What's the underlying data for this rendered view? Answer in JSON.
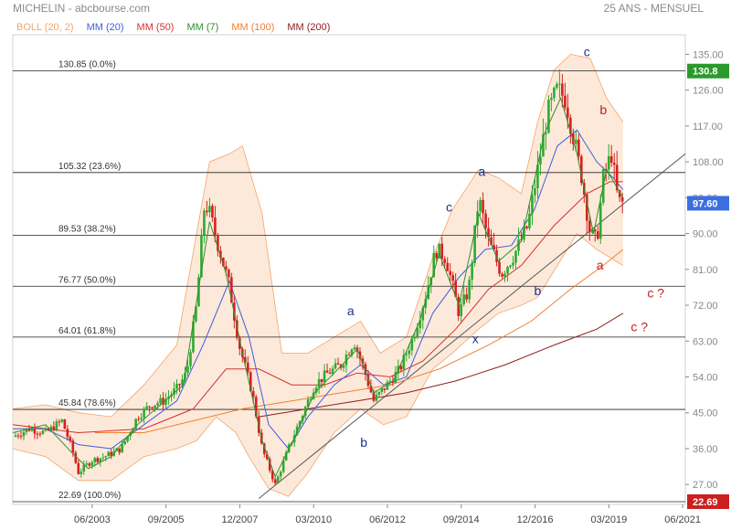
{
  "header": {
    "title": "MICHELIN - abcbourse.com",
    "period": "25 ANS - MENSUEL"
  },
  "legend": [
    {
      "label": "BOLL (20, 2)",
      "color": "#f4a46a"
    },
    {
      "label": "MM (20)",
      "color": "#3b5fe0"
    },
    {
      "label": "MM (50)",
      "color": "#d83030"
    },
    {
      "label": "MM (7)",
      "color": "#2f8f2f"
    },
    {
      "label": "MM (100)",
      "color": "#f08030"
    },
    {
      "label": "MM (200)",
      "color": "#8b2020"
    }
  ],
  "colors": {
    "up_candle": "#2faa2f",
    "down_candle": "#d62020",
    "bollinger_fill": "#fde3cf",
    "bollinger_line": "#f4a46a",
    "trendline": "#555555",
    "last_price_badge": "#2a9a2a",
    "low_badge": "#cc2020",
    "current_badge": "#3b6fe0",
    "wave_blue": "#1f2f8f",
    "wave_red": "#c02020"
  },
  "chart_data": {
    "type": "candlestick",
    "ylim": [
      22,
      139
    ],
    "xlim": [
      2001.0,
      2021.5
    ],
    "x_ticks": [
      {
        "label": "06/2003",
        "x": 2003.42
      },
      {
        "label": "09/2005",
        "x": 2005.67
      },
      {
        "label": "12/2007",
        "x": 2007.92
      },
      {
        "label": "03/2010",
        "x": 2010.17
      },
      {
        "label": "06/2012",
        "x": 2012.42
      },
      {
        "label": "09/2014",
        "x": 2014.67
      },
      {
        "label": "12/2016",
        "x": 2016.92
      },
      {
        "label": "03/2019",
        "x": 2019.17
      },
      {
        "label": "06/2021",
        "x": 2021.42
      }
    ],
    "y_ticks": [
      27.0,
      36.0,
      45.0,
      54.0,
      63.0,
      72.0,
      81.0,
      90.0,
      99.0,
      108.0,
      117.0,
      126.0,
      135.0
    ],
    "y_tick_labels": [
      "27.00",
      "36.00",
      "45.00",
      "54.00",
      "63.00",
      "72.00",
      "81.00",
      "90.00",
      "99.00",
      "108.00",
      "117.00",
      "126.00",
      "135.00"
    ],
    "fib_levels": [
      {
        "value": 130.85,
        "label": "130.85  (0.0%)"
      },
      {
        "value": 105.32,
        "label": "105.32  (23.6%)"
      },
      {
        "value": 89.53,
        "label": "89.53  (38.2%)"
      },
      {
        "value": 76.77,
        "label": "76.77  (50.0%)"
      },
      {
        "value": 64.01,
        "label": "64.01  (61.8%)"
      },
      {
        "value": 45.84,
        "label": "45.84  (78.6%)"
      },
      {
        "value": 22.69,
        "label": "22.69  (100.0%)"
      }
    ],
    "badges": [
      {
        "label": "130.8",
        "value": 130.8,
        "role": "high"
      },
      {
        "label": "97.60",
        "value": 97.6,
        "role": "current"
      },
      {
        "label": "22.69",
        "value": 22.69,
        "role": "low"
      }
    ],
    "trendline": [
      [
        2008.5,
        23.5
      ],
      [
        2021.5,
        110.0
      ]
    ],
    "close_path": [
      [
        2001.0,
        39
      ],
      [
        2001.5,
        41
      ],
      [
        2002.0,
        40
      ],
      [
        2002.5,
        43
      ],
      [
        2002.8,
        36
      ],
      [
        2003.0,
        30
      ],
      [
        2003.4,
        33
      ],
      [
        2003.8,
        34
      ],
      [
        2004.3,
        36
      ],
      [
        2004.8,
        44
      ],
      [
        2005.2,
        47
      ],
      [
        2005.6,
        48
      ],
      [
        2006.0,
        51
      ],
      [
        2006.3,
        55
      ],
      [
        2006.6,
        72
      ],
      [
        2006.85,
        98
      ],
      [
        2007.0,
        95
      ],
      [
        2007.3,
        86
      ],
      [
        2007.6,
        77
      ],
      [
        2007.9,
        62
      ],
      [
        2008.3,
        50
      ],
      [
        2008.6,
        36
      ],
      [
        2009.0,
        27
      ],
      [
        2009.4,
        36
      ],
      [
        2009.8,
        44
      ],
      [
        2010.2,
        52
      ],
      [
        2010.6,
        55
      ],
      [
        2011.0,
        57
      ],
      [
        2011.4,
        63
      ],
      [
        2011.7,
        56
      ],
      [
        2012.0,
        48
      ],
      [
        2012.4,
        52
      ],
      [
        2012.8,
        56
      ],
      [
        2013.2,
        64
      ],
      [
        2013.6,
        75
      ],
      [
        2013.9,
        86
      ],
      [
        2014.2,
        84
      ],
      [
        2014.6,
        70
      ],
      [
        2014.9,
        76
      ],
      [
        2015.2,
        99
      ],
      [
        2015.5,
        88
      ],
      [
        2015.9,
        80
      ],
      [
        2016.3,
        85
      ],
      [
        2016.7,
        92
      ],
      [
        2017.0,
        106
      ],
      [
        2017.3,
        120
      ],
      [
        2017.6,
        126
      ],
      [
        2017.85,
        124
      ],
      [
        2018.1,
        114
      ],
      [
        2018.35,
        104
      ],
      [
        2018.6,
        90
      ],
      [
        2018.8,
        88
      ],
      [
        2019.0,
        104
      ],
      [
        2019.25,
        110
      ],
      [
        2019.45,
        98
      ],
      [
        2019.6,
        97.6
      ]
    ],
    "mm20": [
      [
        2001.0,
        41
      ],
      [
        2002.0,
        41
      ],
      [
        2003.0,
        37
      ],
      [
        2004.0,
        36
      ],
      [
        2005.0,
        42
      ],
      [
        2006.0,
        48
      ],
      [
        2006.8,
        62
      ],
      [
        2007.6,
        78
      ],
      [
        2008.2,
        64
      ],
      [
        2008.8,
        42
      ],
      [
        2009.4,
        36
      ],
      [
        2010.0,
        44
      ],
      [
        2010.8,
        52
      ],
      [
        2011.6,
        57
      ],
      [
        2012.3,
        52
      ],
      [
        2013.0,
        54
      ],
      [
        2013.8,
        70
      ],
      [
        2014.6,
        79
      ],
      [
        2015.4,
        86
      ],
      [
        2016.2,
        87
      ],
      [
        2016.9,
        96
      ],
      [
        2017.6,
        112
      ],
      [
        2018.2,
        116
      ],
      [
        2018.8,
        108
      ],
      [
        2019.3,
        104
      ],
      [
        2019.6,
        101
      ]
    ],
    "mm50": [
      [
        2001.0,
        42
      ],
      [
        2003.0,
        40
      ],
      [
        2005.0,
        41
      ],
      [
        2006.5,
        46
      ],
      [
        2007.5,
        56
      ],
      [
        2008.5,
        56
      ],
      [
        2009.5,
        52
      ],
      [
        2010.5,
        52
      ],
      [
        2011.5,
        55
      ],
      [
        2012.5,
        54
      ],
      [
        2013.5,
        58
      ],
      [
        2014.5,
        66
      ],
      [
        2015.5,
        76
      ],
      [
        2016.5,
        82
      ],
      [
        2017.5,
        92
      ],
      [
        2018.5,
        100
      ],
      [
        2019.2,
        103
      ],
      [
        2019.6,
        103
      ]
    ],
    "mm100": [
      [
        2003.5,
        40
      ],
      [
        2005.0,
        40
      ],
      [
        2006.5,
        43
      ],
      [
        2008.0,
        46
      ],
      [
        2009.5,
        48
      ],
      [
        2011.0,
        50
      ],
      [
        2012.5,
        52
      ],
      [
        2014.0,
        56
      ],
      [
        2015.5,
        62
      ],
      [
        2016.8,
        68
      ],
      [
        2018.0,
        76
      ],
      [
        2019.0,
        82
      ],
      [
        2019.6,
        86
      ]
    ],
    "mm200": [
      [
        2008.5,
        44
      ],
      [
        2010.0,
        46
      ],
      [
        2011.5,
        48
      ],
      [
        2013.0,
        50
      ],
      [
        2014.5,
        53
      ],
      [
        2016.0,
        57
      ],
      [
        2017.5,
        62
      ],
      [
        2018.8,
        66
      ],
      [
        2019.6,
        70
      ]
    ],
    "mm7": [
      [
        2001.0,
        40
      ],
      [
        2002.0,
        42
      ],
      [
        2002.8,
        35
      ],
      [
        2003.3,
        31
      ],
      [
        2004.0,
        34
      ],
      [
        2004.8,
        42
      ],
      [
        2005.5,
        47
      ],
      [
        2006.2,
        52
      ],
      [
        2006.7,
        78
      ],
      [
        2007.0,
        93
      ],
      [
        2007.5,
        80
      ],
      [
        2008.0,
        60
      ],
      [
        2008.6,
        38
      ],
      [
        2009.0,
        29
      ],
      [
        2009.6,
        39
      ],
      [
        2010.2,
        50
      ],
      [
        2010.8,
        55
      ],
      [
        2011.5,
        61
      ],
      [
        2012.0,
        50
      ],
      [
        2012.6,
        53
      ],
      [
        2013.4,
        68
      ],
      [
        2014.0,
        85
      ],
      [
        2014.6,
        72
      ],
      [
        2015.2,
        95
      ],
      [
        2015.8,
        83
      ],
      [
        2016.5,
        88
      ],
      [
        2017.2,
        115
      ],
      [
        2017.7,
        124
      ],
      [
        2018.2,
        110
      ],
      [
        2018.7,
        90
      ],
      [
        2019.1,
        106
      ],
      [
        2019.6,
        99
      ]
    ],
    "boll_upper": [
      [
        2001.0,
        46
      ],
      [
        2002.0,
        47
      ],
      [
        2003.0,
        45
      ],
      [
        2004.0,
        44
      ],
      [
        2005.0,
        52
      ],
      [
        2006.0,
        62
      ],
      [
        2006.6,
        90
      ],
      [
        2007.0,
        108
      ],
      [
        2007.6,
        110
      ],
      [
        2008.0,
        112
      ],
      [
        2008.6,
        95
      ],
      [
        2009.2,
        60
      ],
      [
        2010.0,
        60
      ],
      [
        2010.8,
        64
      ],
      [
        2011.6,
        68
      ],
      [
        2012.2,
        60
      ],
      [
        2013.0,
        64
      ],
      [
        2013.8,
        84
      ],
      [
        2014.4,
        96
      ],
      [
        2015.2,
        106
      ],
      [
        2015.8,
        104
      ],
      [
        2016.5,
        100
      ],
      [
        2017.0,
        118
      ],
      [
        2017.5,
        131
      ],
      [
        2018.0,
        135
      ],
      [
        2018.6,
        134
      ],
      [
        2019.1,
        124
      ],
      [
        2019.6,
        118
      ]
    ],
    "boll_lower": [
      [
        2001.0,
        36
      ],
      [
        2002.0,
        34
      ],
      [
        2003.0,
        28
      ],
      [
        2004.0,
        28
      ],
      [
        2005.0,
        34
      ],
      [
        2006.0,
        36
      ],
      [
        2006.6,
        38
      ],
      [
        2007.2,
        44
      ],
      [
        2007.8,
        40
      ],
      [
        2008.2,
        34
      ],
      [
        2008.8,
        26
      ],
      [
        2009.4,
        24
      ],
      [
        2010.0,
        30
      ],
      [
        2010.8,
        40
      ],
      [
        2011.6,
        46
      ],
      [
        2012.3,
        42
      ],
      [
        2013.0,
        44
      ],
      [
        2013.8,
        56
      ],
      [
        2014.4,
        60
      ],
      [
        2015.2,
        66
      ],
      [
        2015.8,
        70
      ],
      [
        2016.5,
        72
      ],
      [
        2017.0,
        74
      ],
      [
        2017.6,
        82
      ],
      [
        2018.2,
        90
      ],
      [
        2018.8,
        86
      ],
      [
        2019.2,
        84
      ],
      [
        2019.6,
        82
      ]
    ],
    "wave_labels": [
      {
        "text": "a",
        "x": 2011.3,
        "y": 69.5,
        "color": "blue"
      },
      {
        "text": "b",
        "x": 2011.7,
        "y": 36.5,
        "color": "blue"
      },
      {
        "text": "c",
        "x": 2014.3,
        "y": 95.5,
        "color": "blue"
      },
      {
        "text": "a",
        "x": 2015.3,
        "y": 104.5,
        "color": "blue"
      },
      {
        "text": "x",
        "x": 2015.1,
        "y": 62.5,
        "color": "blue"
      },
      {
        "text": "b",
        "x": 2017.0,
        "y": 74.5,
        "color": "blue"
      },
      {
        "text": "c",
        "x": 2018.5,
        "y": 134.5,
        "color": "blue"
      },
      {
        "text": "b",
        "x": 2019.0,
        "y": 120.0,
        "color": "red"
      },
      {
        "text": "a",
        "x": 2018.9,
        "y": 81.0,
        "color": "red"
      },
      {
        "text": "c ?",
        "x": 2020.6,
        "y": 74.0,
        "color": "red"
      },
      {
        "text": "c ?",
        "x": 2020.1,
        "y": 65.5,
        "color": "red"
      }
    ]
  }
}
